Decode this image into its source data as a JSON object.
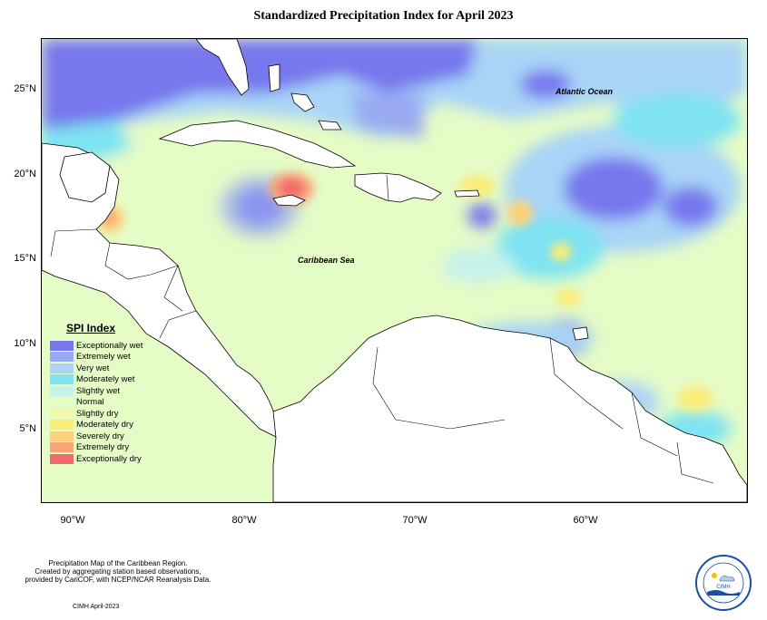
{
  "title": "Standardized Precipitation Index for April 2023",
  "map_labels": {
    "atlantic": "Atlantic Ocean",
    "caribbean": "Caribbean Sea"
  },
  "x_ticks": [
    "90°W",
    "80°W",
    "70°W",
    "60°W"
  ],
  "y_ticks": [
    "25°N",
    "20°N",
    "15°N",
    "10°N",
    "5°N"
  ],
  "legend": {
    "title": "SPI Index",
    "items": [
      {
        "label": "Exceptionally wet",
        "color": "#7777ee"
      },
      {
        "label": "Extremely wet",
        "color": "#99aaf2"
      },
      {
        "label": "Very wet",
        "color": "#a9d4f6"
      },
      {
        "label": "Moderately wet",
        "color": "#7fe3f2"
      },
      {
        "label": "Slightly wet",
        "color": "#c6f2ea"
      },
      {
        "label": "Normal",
        "color": "#e6fcc6"
      },
      {
        "label": "Slightly dry",
        "color": "#f3f7a8"
      },
      {
        "label": "Moderately dry",
        "color": "#f9ec7a"
      },
      {
        "label": "Severely dry",
        "color": "#fbd27a"
      },
      {
        "label": "Extremely dry",
        "color": "#f8a57a"
      },
      {
        "label": "Exceptionally dry",
        "color": "#f26b6b"
      }
    ]
  },
  "credits": {
    "line1": "Precipitation Map of the Caribbean Region.",
    "line2": "Created by aggregating station based observations,",
    "line3": "provided by CariCOF, with NCEP/NCAR Reanalysis Data."
  },
  "footer": "CIMH April-2023",
  "logo": {
    "text": "CIMH"
  }
}
